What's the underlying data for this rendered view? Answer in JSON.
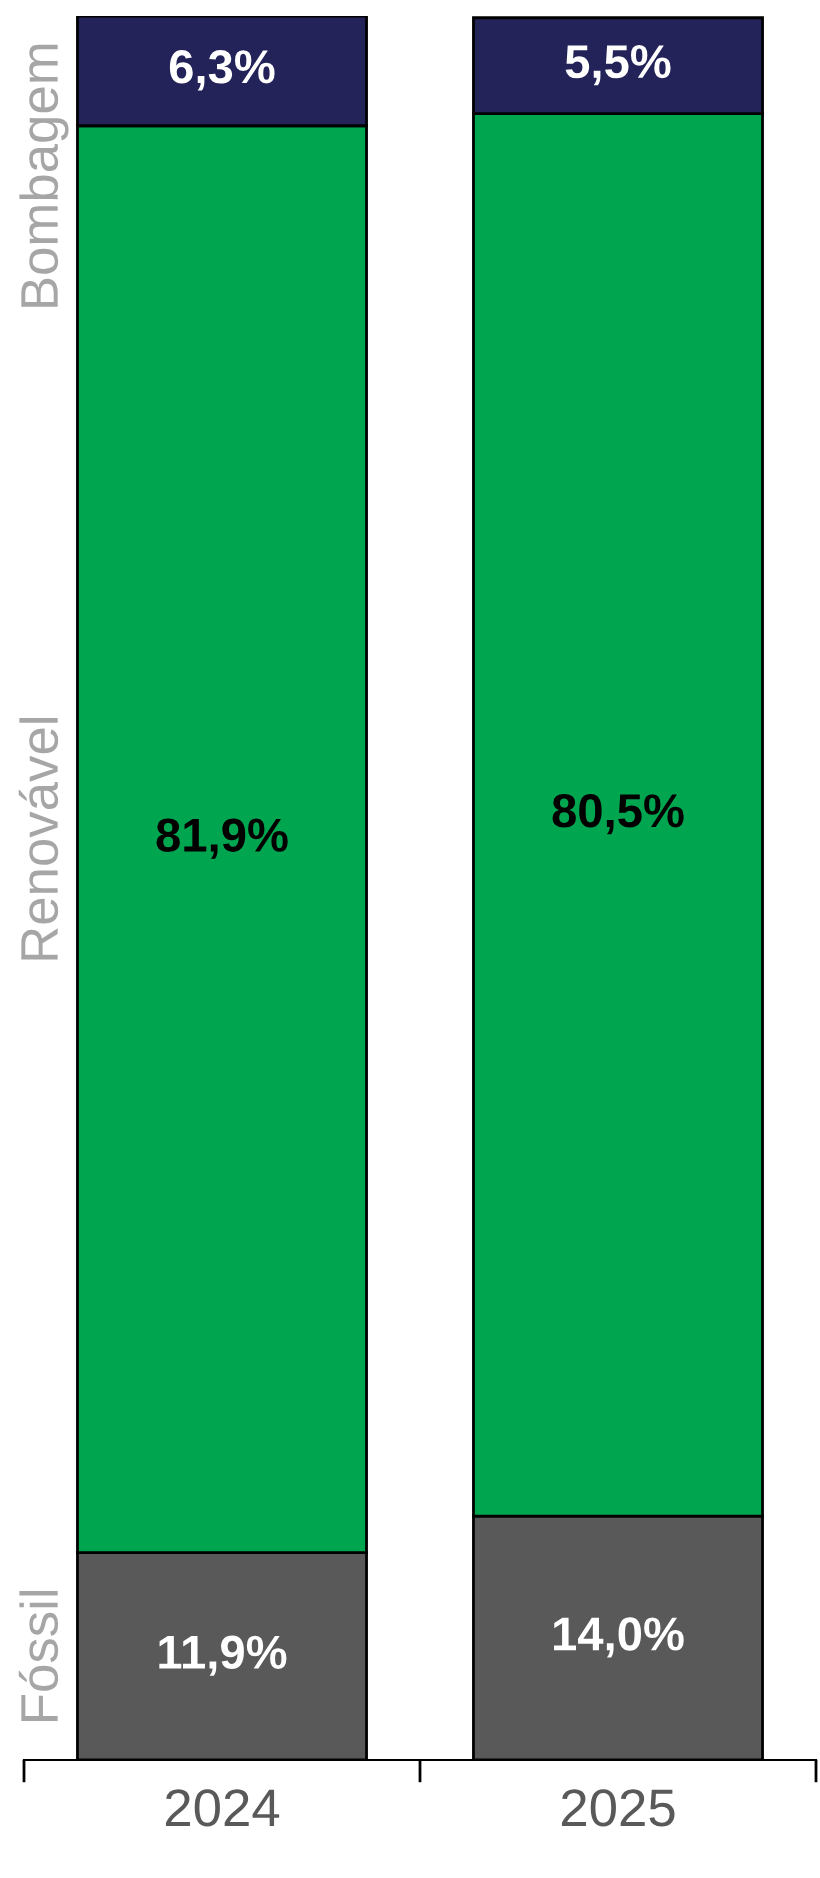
{
  "chart_data": {
    "type": "bar",
    "stacked": true,
    "categories": [
      "2024",
      "2025"
    ],
    "series": [
      {
        "name": "Fóssil",
        "color": "#595959",
        "values": [
          11.9,
          14.0
        ],
        "value_labels": [
          "11,9%",
          "14,0%"
        ]
      },
      {
        "name": "Renovável",
        "color": "#00a550",
        "values": [
          81.9,
          80.5
        ],
        "value_labels": [
          "81,9%",
          "80,5%"
        ]
      },
      {
        "name": "Bombagem",
        "color": "#23235a",
        "values": [
          6.3,
          5.5
        ],
        "value_labels": [
          "6,3%",
          "5,5%"
        ]
      }
    ],
    "legend": false,
    "grid": false
  }
}
